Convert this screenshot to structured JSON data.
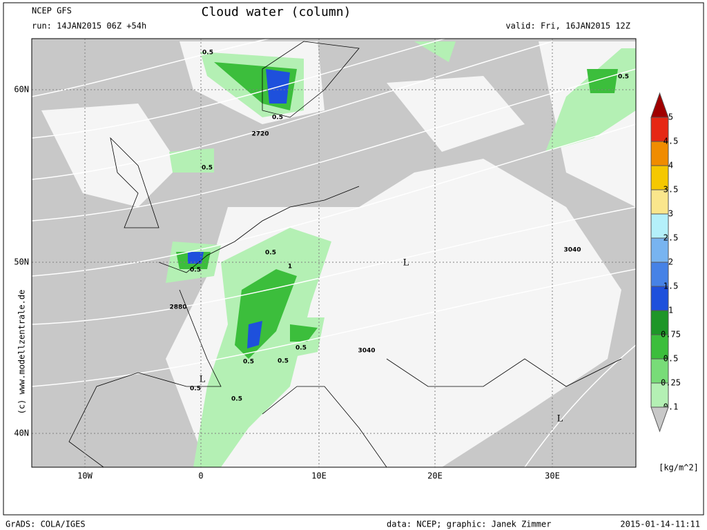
{
  "header": {
    "model": "NCEP GFS",
    "run": "run: 14JAN2015 06Z +54h",
    "title": "Cloud water (column)",
    "valid": "valid: Fri, 16JAN2015 12Z"
  },
  "map": {
    "lat_labels": [
      "60N",
      "50N",
      "40N"
    ],
    "lon_labels": [
      "10W",
      "0",
      "10E",
      "20E",
      "30E"
    ],
    "labels": [
      "2720",
      "2880",
      "3040",
      "3040",
      "L",
      "L",
      "L",
      "1",
      "0.5",
      "0.5",
      "0.5",
      "0.5",
      "0.5",
      "0.5",
      "0.5",
      "0.5",
      "0.5",
      "0.5",
      "0.5"
    ]
  },
  "colorbar": {
    "labels": [
      "5",
      "4.5",
      "4",
      "3.5",
      "3",
      "2.5",
      "2",
      "1.5",
      "1",
      "0.75",
      "0.5",
      "0.25",
      "0.1"
    ],
    "colors": [
      "#a00000",
      "#e62814",
      "#f08c00",
      "#f5c800",
      "#fae68c",
      "#b4f0fa",
      "#78b4f0",
      "#4682e6",
      "#1e50dc",
      "#1e9628",
      "#3cbe3c",
      "#78dc78",
      "#b4f0b4",
      "#f5f5f5",
      "#c8c8c8"
    ],
    "unit": "[kg/m^2]"
  },
  "credit": "(c) www.modellzentrale.de",
  "footer": {
    "left": "GrADS: COLA/IGES",
    "middle": "data: NCEP; graphic: Janek Zimmer",
    "right": "2015-01-14-11:11"
  }
}
